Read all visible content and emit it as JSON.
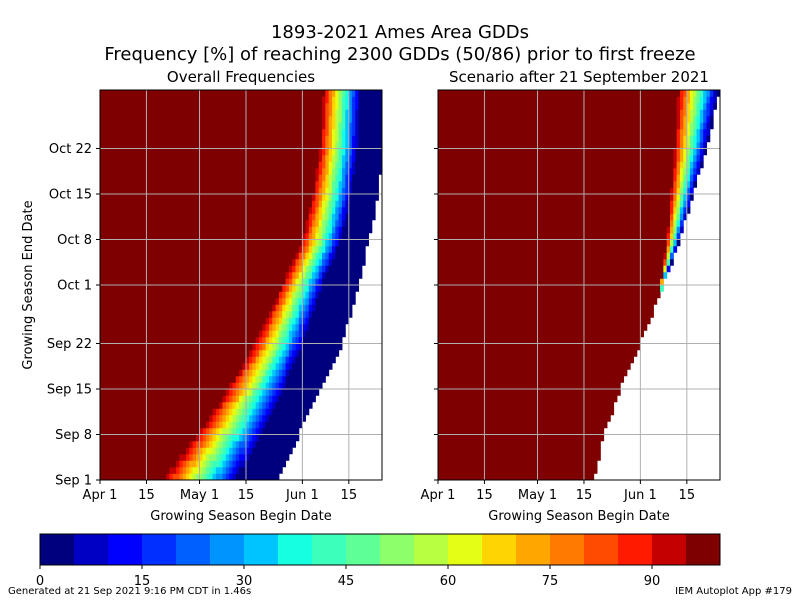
{
  "title_line1": "1893-2021 Ames Area GDDs",
  "title_line2": "Frequency [%] of reaching 2300 GDDs (50/86) prior to first freeze",
  "footer_left": "Generated at 21 Sep 2021 9:16 PM CDT in 1.46s",
  "footer_right": "IEM Autoplot App #179",
  "colorbar": {
    "ticks": [
      "0",
      "15",
      "30",
      "45",
      "60",
      "75",
      "90"
    ],
    "tick_values": [
      0,
      15,
      30,
      45,
      60,
      75,
      90
    ],
    "range": [
      0,
      100
    ],
    "bins": 20,
    "colors": [
      "#00007f",
      "#0000c4",
      "#0000ff",
      "#0030ff",
      "#0060ff",
      "#0094ff",
      "#00c4ff",
      "#16ffe1",
      "#3bffbb",
      "#5fff98",
      "#8dff6a",
      "#b7ff40",
      "#e4ff13",
      "#ffd400",
      "#ffa700",
      "#ff7b00",
      "#ff4b00",
      "#ff1a00",
      "#c40000",
      "#7f0000"
    ]
  },
  "chart_data": [
    {
      "type": "heatmap",
      "title": "Overall Frequencies",
      "xlabel": "Growing Season Begin Date",
      "ylabel": "Growing Season End Date",
      "x_tick_labels": [
        "Apr 1",
        "15",
        "May 1",
        "15",
        "Jun 1",
        "15"
      ],
      "x_tick_days": [
        91,
        105,
        121,
        135,
        152,
        166
      ],
      "x_range_days": [
        91,
        176
      ],
      "y_tick_labels": [
        "Sep 1",
        "Sep 8",
        "Sep 15",
        "Sep 22",
        "Oct 1",
        "Oct 8",
        "Oct 15",
        "Oct 22"
      ],
      "y_tick_days": [
        244,
        251,
        258,
        265,
        274,
        281,
        288,
        295
      ],
      "y_range_days": [
        244,
        304
      ],
      "grid": true,
      "cell_value_rule": "frequency from 100% (dark red) at early begin dates dropping through the 50% band (green) to near 0% (dark blue) at late begin dates; white = undefined",
      "front_50pct_begin_day": [
        [
          244,
          121
        ],
        [
          251,
          130
        ],
        [
          258,
          138
        ],
        [
          265,
          145
        ],
        [
          274,
          152
        ],
        [
          281,
          158
        ],
        [
          288,
          161
        ],
        [
          295,
          163
        ],
        [
          304,
          164
        ]
      ],
      "transition_width_days": [
        [
          244,
          24
        ],
        [
          258,
          18
        ],
        [
          274,
          13
        ],
        [
          304,
          12
        ]
      ],
      "data_edge_begin_day": [
        [
          244,
          144
        ],
        [
          251,
          151
        ],
        [
          258,
          157
        ],
        [
          265,
          164
        ],
        [
          274,
          169
        ],
        [
          281,
          172
        ],
        [
          288,
          175
        ],
        [
          295,
          176
        ],
        [
          304,
          176
        ]
      ]
    },
    {
      "type": "heatmap",
      "title": "Scenario after 21 September 2021",
      "xlabel": "Growing Season Begin Date",
      "ylabel": "",
      "x_tick_labels": [
        "Apr 1",
        "15",
        "May 1",
        "15",
        "Jun 1",
        "15"
      ],
      "x_tick_days": [
        91,
        105,
        121,
        135,
        152,
        166
      ],
      "x_range_days": [
        91,
        176
      ],
      "y_tick_labels": [
        "",
        "",
        "",
        "",
        "",
        "",
        "",
        ""
      ],
      "y_tick_days": [
        244,
        251,
        258,
        265,
        274,
        281,
        288,
        295
      ],
      "y_range_days": [
        244,
        304
      ],
      "grid": true,
      "cell_value_rule": "100% (dark red) up to the transition, narrow band down to 0% (dark blue) at the data edge; white = undefined",
      "transition_start_begin_day": [
        [
          266,
          157
        ],
        [
          274,
          158
        ],
        [
          281,
          160
        ],
        [
          288,
          161
        ],
        [
          295,
          162
        ],
        [
          304,
          163
        ]
      ],
      "data_edge_begin_day": [
        [
          244,
          138
        ],
        [
          251,
          141
        ],
        [
          258,
          146
        ],
        [
          265,
          152
        ],
        [
          274,
          159
        ],
        [
          281,
          164
        ],
        [
          288,
          168
        ],
        [
          295,
          172
        ],
        [
          304,
          176
        ]
      ]
    }
  ]
}
